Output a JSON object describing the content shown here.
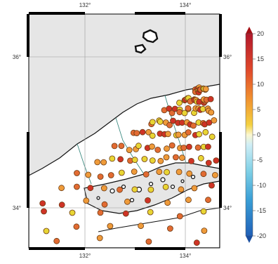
{
  "map": {
    "lon_labels_top": [
      "132°",
      "134°"
    ],
    "lon_labels_bottom": [
      "132°",
      "134°"
    ],
    "lat_labels_left": [
      "36°",
      "34°"
    ],
    "lat_labels_right": [
      "36°",
      "34°"
    ],
    "sea_color": "#e6e6e6",
    "land_color": "#ffffff",
    "marker_palette": [
      "#e8d534",
      "#ef9b3a",
      "#e26b32",
      "#cf3326"
    ]
  },
  "colorbar": {
    "tick_labels": [
      "20",
      "15",
      "10",
      "5",
      "0",
      "-5",
      "-10",
      "-15",
      "-20"
    ],
    "range": [
      -20,
      20
    ],
    "extend": "both"
  }
}
